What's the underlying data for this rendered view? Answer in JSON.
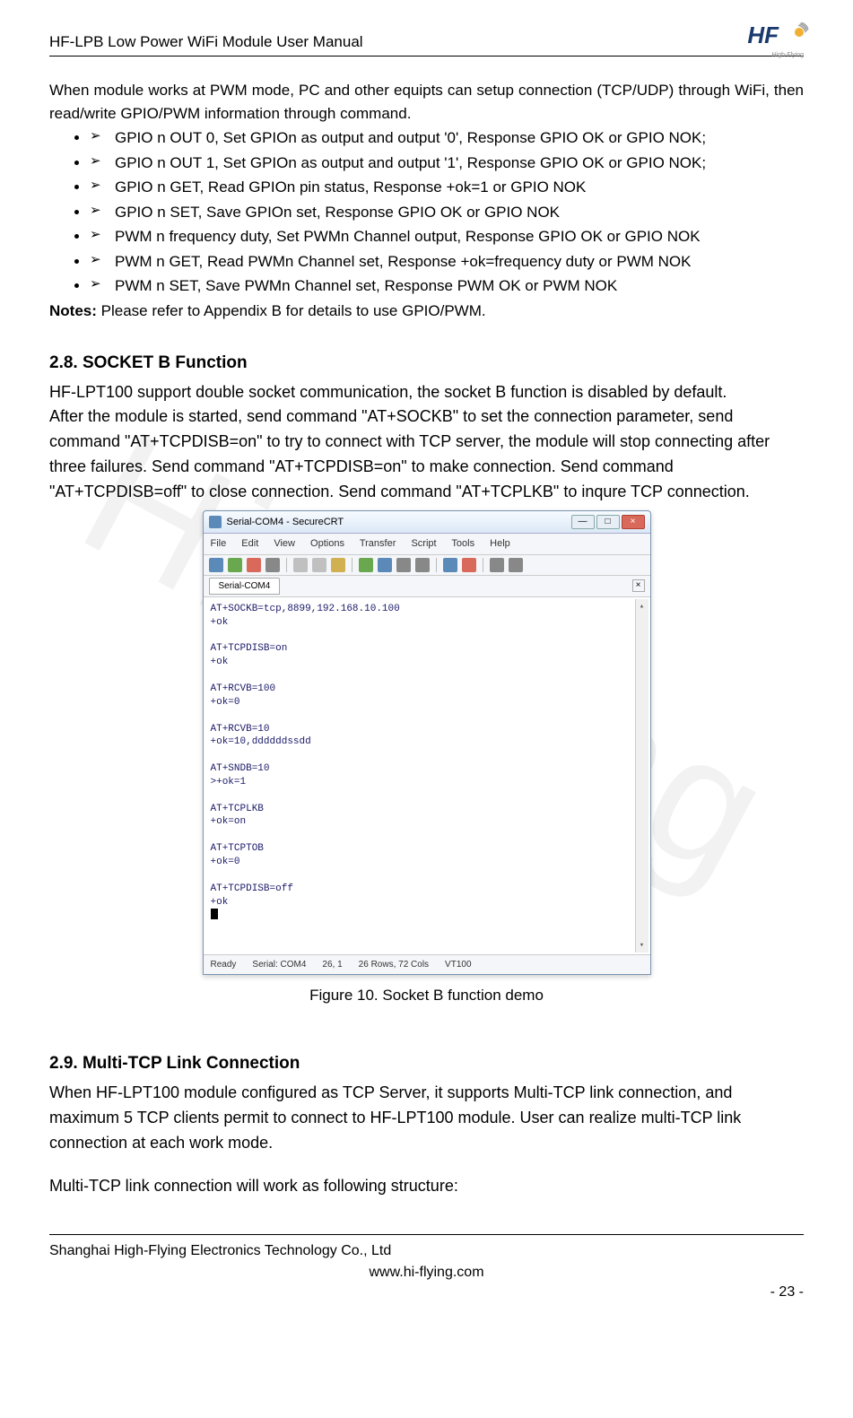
{
  "header": {
    "title": "HF-LPB Low Power WiFi Module User Manual",
    "logo_text": "HF",
    "logo_sub": "High-Flying"
  },
  "watermark": "Hi-Flying",
  "intro": {
    "p1": "When module works at PWM mode, PC and other equipts can setup connection (TCP/UDP) through WiFi, then read/write GPIO/PWM information through command.",
    "items": [
      "GPIO n OUT 0, Set GPIOn as output and output '0', Response GPIO OK or GPIO NOK;",
      "GPIO n OUT 1, Set GPIOn as output and output '1', Response GPIO OK or GPIO NOK;",
      "GPIO n GET, Read GPIOn pin status, Response +ok=1 or GPIO NOK",
      "GPIO n SET, Save GPIOn set, Response GPIO OK or GPIO NOK",
      "PWM n frequency duty, Set PWMn Channel output, Response GPIO OK or GPIO NOK",
      "PWM n GET, Read PWMn Channel set, Response +ok=frequency duty or PWM NOK",
      "PWM n SET, Save PWMn Channel set, Response PWM OK or PWM NOK"
    ],
    "notes_label": "Notes:",
    "notes_text": " Please refer to Appendix B for details to use GPIO/PWM."
  },
  "section28": {
    "title": "2.8.   SOCKET B Function",
    "p1": "HF-LPT100 support double socket communication, the socket B function is disabled by default.",
    "p2": "After the module is started, send command \"AT+SOCKB\" to set the connection parameter, send command \"AT+TCPDISB=on\" to try to connect with TCP server, the module will stop connecting after three failures. Send command \"AT+TCPDISB=on\" to make connection. Send command \"AT+TCPDISB=off\" to close connection.  Send command \"AT+TCPLKB\" to inqure TCP connection."
  },
  "terminal": {
    "title": "Serial-COM4 - SecureCRT",
    "menus": [
      "File",
      "Edit",
      "View",
      "Options",
      "Transfer",
      "Script",
      "Tools",
      "Help"
    ],
    "tab": "Serial-COM4",
    "lines": "AT+SOCKB=tcp,8899,192.168.10.100\n+ok\n\nAT+TCPDISB=on\n+ok\n\nAT+RCVB=100\n+ok=0\n\nAT+RCVB=10\n+ok=10,ddddddssdd\n\nAT+SNDB=10\n>+ok=1\n\nAT+TCPLKB\n+ok=on\n\nAT+TCPTOB\n+ok=0\n\nAT+TCPDISB=off\n+ok\n",
    "status": {
      "ready": "Ready",
      "serial": "Serial: COM4",
      "pos": "26,    1",
      "rows": "26 Rows,  72 Cols",
      "vt": "VT100"
    },
    "toolbar_colors": [
      "#5b8ab8",
      "#6aa84f",
      "#d96a5b",
      "#888888",
      "#c0c0c0",
      "#c0c0c0",
      "#d0b050",
      "#6aa84f",
      "#5b8ab8",
      "#888888",
      "#888888",
      "#5b8ab8",
      "#d96a5b",
      "#888888",
      "#888888"
    ]
  },
  "figure_caption": "Figure 10.   Socket B function demo",
  "section29": {
    "title": "2.9.  Multi-TCP Link Connection",
    "p1": "When HF-LPT100 module configured as TCP Server, it supports Multi-TCP link connection, and maximum 5 TCP clients permit to connect to HF-LPT100 module. User can realize multi-TCP link connection at each work mode.",
    "p2": "Multi-TCP link connection will work as following structure:"
  },
  "footer": {
    "line1": "Shanghai High-Flying Electronics Technology Co., Ltd",
    "line2": "www.hi-flying.com",
    "page": "- 23 -"
  }
}
